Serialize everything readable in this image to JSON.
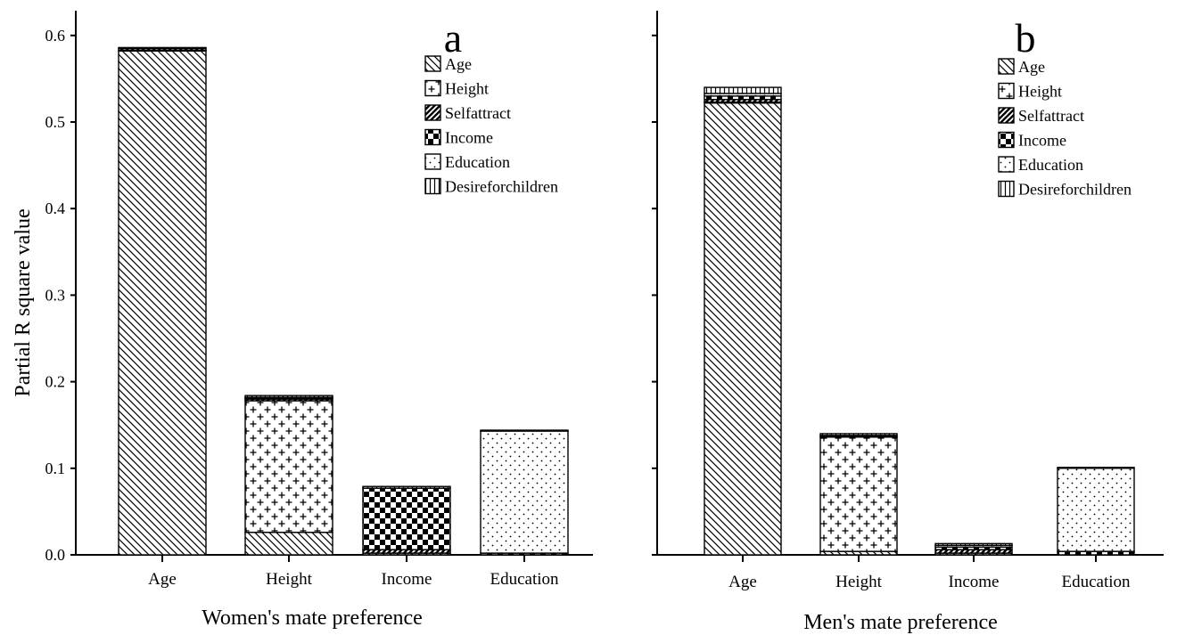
{
  "chart_data": [
    {
      "type": "bar",
      "stacked": true,
      "panel_letter": "a",
      "xlabel": "Women's mate preference",
      "ylabel": "Partial R square value",
      "ylim": [
        0,
        0.6
      ],
      "yticks": [
        "0.0",
        "0.1",
        "0.2",
        "0.3",
        "0.4",
        "0.5",
        "0.6"
      ],
      "yticks_labeled": true,
      "categories": [
        "Age",
        "Height",
        "Income",
        "Education"
      ],
      "legend_position": "top-right",
      "series": [
        {
          "name": "Age",
          "pattern": "diag-back",
          "values": [
            0.582,
            0.026,
            0.002,
            0.0
          ]
        },
        {
          "name": "Height",
          "pattern": "plus",
          "values": [
            0.001,
            0.152,
            0.0,
            0.0
          ]
        },
        {
          "name": "Selfattract",
          "pattern": "diag-fwd",
          "values": [
            0.002,
            0.002,
            0.004,
            0.0
          ]
        },
        {
          "name": "Income",
          "pattern": "checker",
          "values": [
            0.0,
            0.001,
            0.071,
            0.002
          ]
        },
        {
          "name": "Education",
          "pattern": "dots",
          "values": [
            0.0,
            0.001,
            0.0,
            0.141
          ]
        },
        {
          "name": "Desireforchildren",
          "pattern": "vlines",
          "values": [
            0.001,
            0.002,
            0.002,
            0.001
          ]
        }
      ]
    },
    {
      "type": "bar",
      "stacked": true,
      "panel_letter": "b",
      "xlabel": "Men's mate preference",
      "ylabel": "",
      "ylim": [
        0,
        0.6
      ],
      "yticks": [
        "0.0",
        "0.1",
        "0.2",
        "0.3",
        "0.4",
        "0.5",
        "0.6"
      ],
      "yticks_labeled": false,
      "categories": [
        "Age",
        "Height",
        "Income",
        "Education"
      ],
      "legend_position": "top-right",
      "series": [
        {
          "name": "Age",
          "pattern": "diag-back",
          "values": [
            0.522,
            0.004,
            0.002,
            0.0
          ]
        },
        {
          "name": "Height",
          "pattern": "plus",
          "values": [
            0.001,
            0.132,
            0.0,
            0.0
          ]
        },
        {
          "name": "Selfattract",
          "pattern": "diag-fwd",
          "values": [
            0.003,
            0.001,
            0.004,
            0.0
          ]
        },
        {
          "name": "Income",
          "pattern": "checker",
          "values": [
            0.004,
            0.001,
            0.003,
            0.004
          ]
        },
        {
          "name": "Education",
          "pattern": "dots",
          "values": [
            0.003,
            0.0,
            0.002,
            0.096
          ]
        },
        {
          "name": "Desireforchildren",
          "pattern": "vlines",
          "values": [
            0.007,
            0.002,
            0.002,
            0.001
          ]
        }
      ]
    }
  ]
}
